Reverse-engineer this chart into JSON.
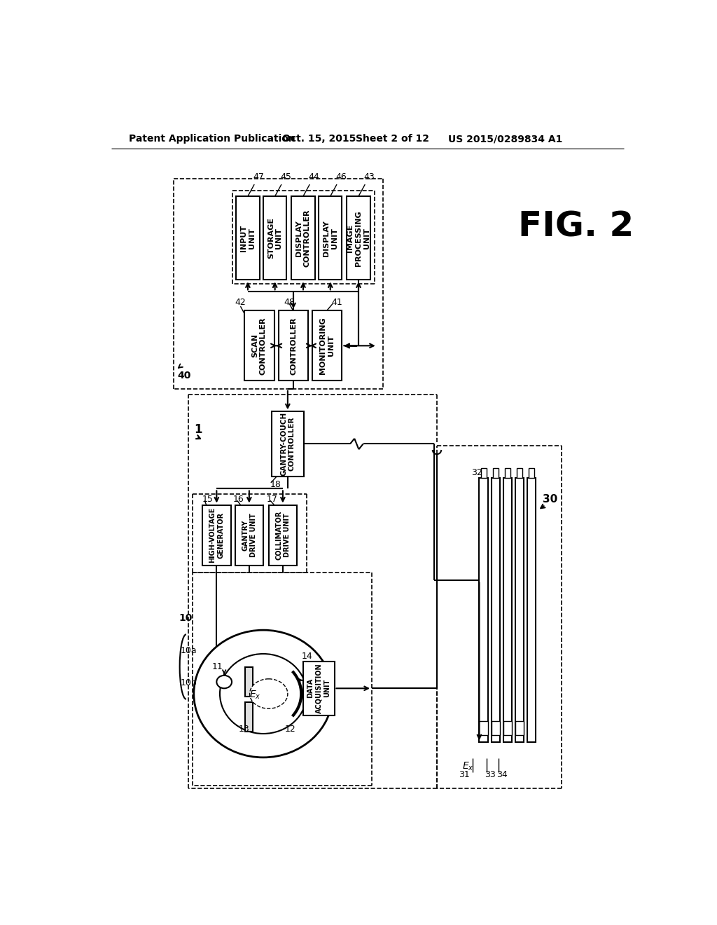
{
  "bg_color": "#ffffff",
  "header_left": "Patent Application Publication",
  "header_mid1": "Oct. 15, 2015",
  "header_mid2": "Sheet 2 of 12",
  "header_right": "US 2015/0289834 A1",
  "fig_label": "FIG. 2",
  "top_boxes": [
    {
      "label": "INPUT\nUNIT",
      "num": "47"
    },
    {
      "label": "STORAGE\nUNIT",
      "num": "45"
    },
    {
      "label": "DISPLAY\nCONTROLLER",
      "num": "44"
    },
    {
      "label": "DISPLAY\nUNIT",
      "num": "46"
    },
    {
      "label": "IMAGE\nPROCESSING\nUNIT",
      "num": "43"
    }
  ],
  "mid_boxes": [
    {
      "label": "SCAN\nCONTROLLER",
      "num": "42"
    },
    {
      "label": "CONTROLLER",
      "num": "48"
    },
    {
      "label": "MONITORING\nUNIT",
      "num": "41"
    }
  ],
  "gcc_label": "GANTRY-COUCH\nCONTROLLER",
  "gcc_num": "18",
  "drive_boxes": [
    {
      "label": "HIGH-VOLTAGE\nGENERATOR",
      "num": "15"
    },
    {
      "label": "GANTRY\nDRIVE UNIT",
      "num": "16"
    },
    {
      "label": "COLLIMATOR\nDRIVE UNIT",
      "num": "17"
    }
  ],
  "dau_label": "DATA\nACQUISITION\nUNIT",
  "dau_num": "14",
  "console_label": "40",
  "system_label": "1",
  "gantry_label": "10",
  "gantry_a": "10a",
  "gantry_b": "10b",
  "tube_label": "11",
  "detector_label": "12",
  "beam_label": "13",
  "panel_label": "30",
  "panel_col_label": "32",
  "panel_row_label": "31",
  "cell_label1": "33",
  "cell_label2": "34"
}
